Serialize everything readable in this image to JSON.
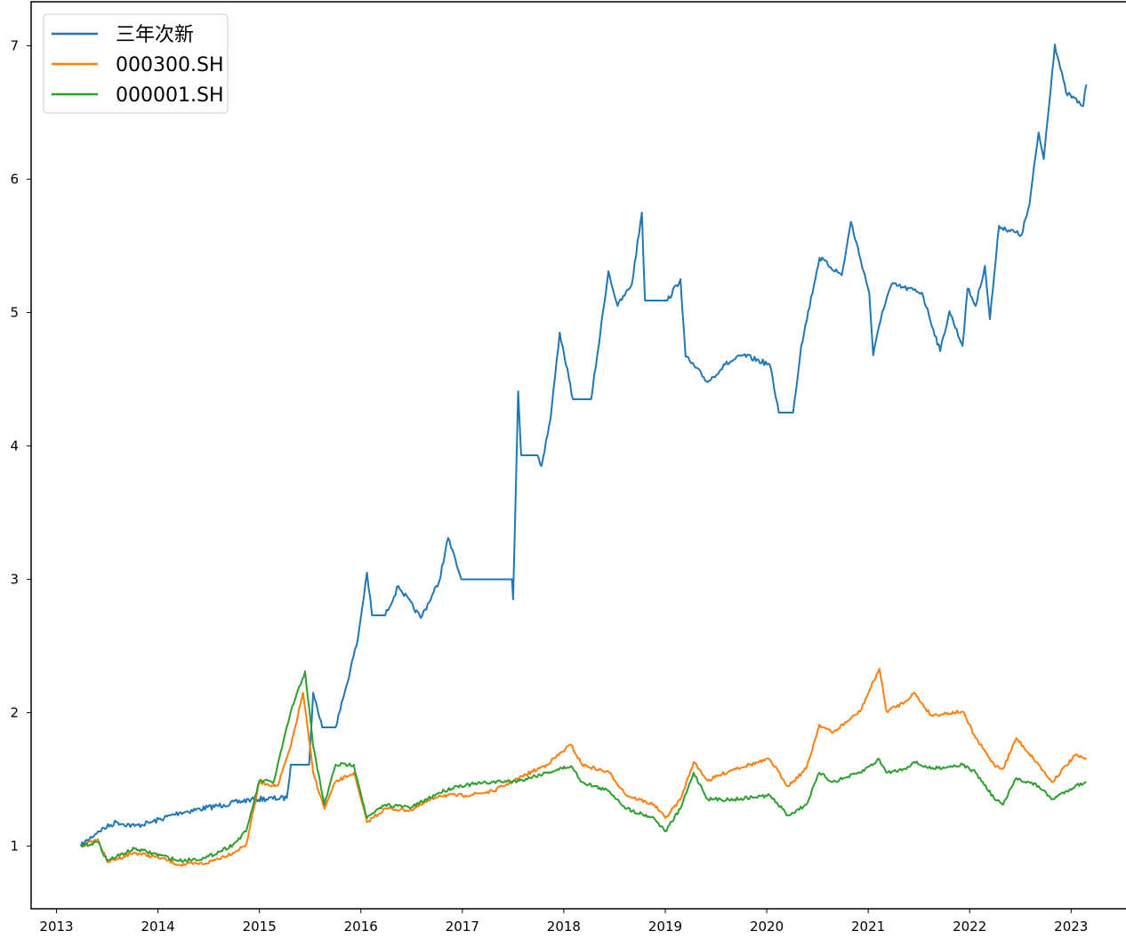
{
  "chart_data": {
    "type": "line",
    "title": "",
    "xlabel": "",
    "ylabel": "",
    "xlim": [
      2012.75,
      2023.62
    ],
    "ylim": [
      0.53,
      7.33
    ],
    "grid": false,
    "legend_position": "top-left",
    "x_ticks": [
      "2013",
      "2014",
      "2015",
      "2016",
      "2017",
      "2018",
      "2019",
      "2020",
      "2021",
      "2022",
      "2023"
    ],
    "y_ticks": [
      "1",
      "2",
      "3",
      "4",
      "5",
      "6",
      "7"
    ],
    "series": [
      {
        "name": "三年次新",
        "color": "#1f77b4",
        "x": [
          2013.24,
          2013.41,
          2013.59,
          2013.77,
          2013.94,
          2014.21,
          2014.65,
          2014.92,
          2015.27,
          2015.31,
          2015.49,
          2015.53,
          2015.62,
          2015.75,
          2015.84,
          2015.97,
          2016.06,
          2016.11,
          2016.24,
          2016.37,
          2016.59,
          2016.77,
          2016.86,
          2016.99,
          2017.49,
          2017.5,
          2017.55,
          2017.58,
          2017.74,
          2017.78,
          2017.87,
          2017.96,
          2018.05,
          2018.09,
          2018.27,
          2018.36,
          2018.44,
          2018.53,
          2018.67,
          2018.77,
          2018.8,
          2019.02,
          2019.15,
          2019.2,
          2019.42,
          2019.59,
          2019.77,
          2020.03,
          2020.12,
          2020.26,
          2020.34,
          2020.52,
          2020.74,
          2020.83,
          2021.01,
          2021.05,
          2021.14,
          2021.23,
          2021.53,
          2021.71,
          2021.8,
          2021.93,
          2021.98,
          2022.06,
          2022.15,
          2022.2,
          2022.29,
          2022.51,
          2022.59,
          2022.68,
          2022.73,
          2022.84,
          2022.95,
          2023.12,
          2023.15
        ],
        "y": [
          1.0,
          1.11,
          1.18,
          1.15,
          1.18,
          1.25,
          1.31,
          1.35,
          1.36,
          1.61,
          1.61,
          2.15,
          1.89,
          1.89,
          2.15,
          2.55,
          3.05,
          2.73,
          2.73,
          2.95,
          2.71,
          2.98,
          3.31,
          3.0,
          3.0,
          2.85,
          4.41,
          3.93,
          3.93,
          3.85,
          4.21,
          4.85,
          4.51,
          4.35,
          4.35,
          4.85,
          5.31,
          5.05,
          5.21,
          5.75,
          5.09,
          5.09,
          5.25,
          4.67,
          4.48,
          4.61,
          4.68,
          4.61,
          4.25,
          4.25,
          4.75,
          5.41,
          5.28,
          5.68,
          5.15,
          4.68,
          5.01,
          5.21,
          5.15,
          4.71,
          5.01,
          4.75,
          5.18,
          5.05,
          5.35,
          4.95,
          5.65,
          5.58,
          5.81,
          6.35,
          6.15,
          7.01,
          6.65,
          6.55,
          6.71
        ]
      },
      {
        "name": "000300.SH",
        "color": "#ff7f0e",
        "x": [
          2013.24,
          2013.41,
          2013.5,
          2013.77,
          2014.03,
          2014.21,
          2014.47,
          2014.74,
          2014.87,
          2015.0,
          2015.18,
          2015.31,
          2015.43,
          2015.53,
          2015.64,
          2015.75,
          2015.93,
          2016.06,
          2016.24,
          2016.5,
          2016.77,
          2017.03,
          2017.3,
          2017.56,
          2017.83,
          2018.07,
          2018.18,
          2018.45,
          2018.62,
          2018.89,
          2019.0,
          2019.15,
          2019.28,
          2019.42,
          2019.68,
          2020.03,
          2020.21,
          2020.39,
          2020.52,
          2020.65,
          2020.92,
          2021.11,
          2021.18,
          2021.36,
          2021.45,
          2021.62,
          2021.93,
          2022.06,
          2022.24,
          2022.33,
          2022.46,
          2022.68,
          2022.81,
          2023.04,
          2023.15
        ],
        "y": [
          1.0,
          1.05,
          0.88,
          0.95,
          0.91,
          0.86,
          0.87,
          0.95,
          1.01,
          1.48,
          1.45,
          1.75,
          2.15,
          1.55,
          1.28,
          1.48,
          1.55,
          1.18,
          1.28,
          1.27,
          1.38,
          1.38,
          1.41,
          1.51,
          1.61,
          1.76,
          1.61,
          1.55,
          1.38,
          1.31,
          1.21,
          1.35,
          1.63,
          1.49,
          1.58,
          1.65,
          1.45,
          1.58,
          1.91,
          1.85,
          2.01,
          2.33,
          2.01,
          2.08,
          2.15,
          1.98,
          2.01,
          1.81,
          1.61,
          1.58,
          1.81,
          1.61,
          1.48,
          1.68,
          1.65
        ]
      },
      {
        "name": "000001.SH",
        "color": "#2ca02c",
        "x": [
          2013.24,
          2013.41,
          2013.5,
          2013.77,
          2014.03,
          2014.21,
          2014.47,
          2014.74,
          2014.87,
          2015.0,
          2015.14,
          2015.31,
          2015.45,
          2015.53,
          2015.64,
          2015.75,
          2015.93,
          2016.06,
          2016.24,
          2016.5,
          2016.77,
          2016.95,
          2017.3,
          2017.56,
          2017.83,
          2018.07,
          2018.18,
          2018.45,
          2018.62,
          2018.89,
          2019.0,
          2019.15,
          2019.28,
          2019.42,
          2019.68,
          2020.03,
          2020.21,
          2020.39,
          2020.52,
          2020.65,
          2020.92,
          2021.11,
          2021.18,
          2021.36,
          2021.45,
          2021.62,
          2021.93,
          2022.06,
          2022.24,
          2022.33,
          2022.46,
          2022.68,
          2022.81,
          2023.04,
          2023.15
        ],
        "y": [
          1.0,
          1.03,
          0.89,
          0.98,
          0.93,
          0.89,
          0.91,
          1.01,
          1.11,
          1.49,
          1.48,
          2.01,
          2.31,
          1.75,
          1.31,
          1.61,
          1.61,
          1.21,
          1.31,
          1.29,
          1.4,
          1.45,
          1.48,
          1.49,
          1.55,
          1.6,
          1.48,
          1.41,
          1.28,
          1.21,
          1.11,
          1.28,
          1.55,
          1.35,
          1.35,
          1.38,
          1.23,
          1.31,
          1.55,
          1.48,
          1.55,
          1.65,
          1.55,
          1.58,
          1.63,
          1.58,
          1.61,
          1.55,
          1.36,
          1.31,
          1.51,
          1.45,
          1.35,
          1.45,
          1.48
        ]
      }
    ]
  }
}
